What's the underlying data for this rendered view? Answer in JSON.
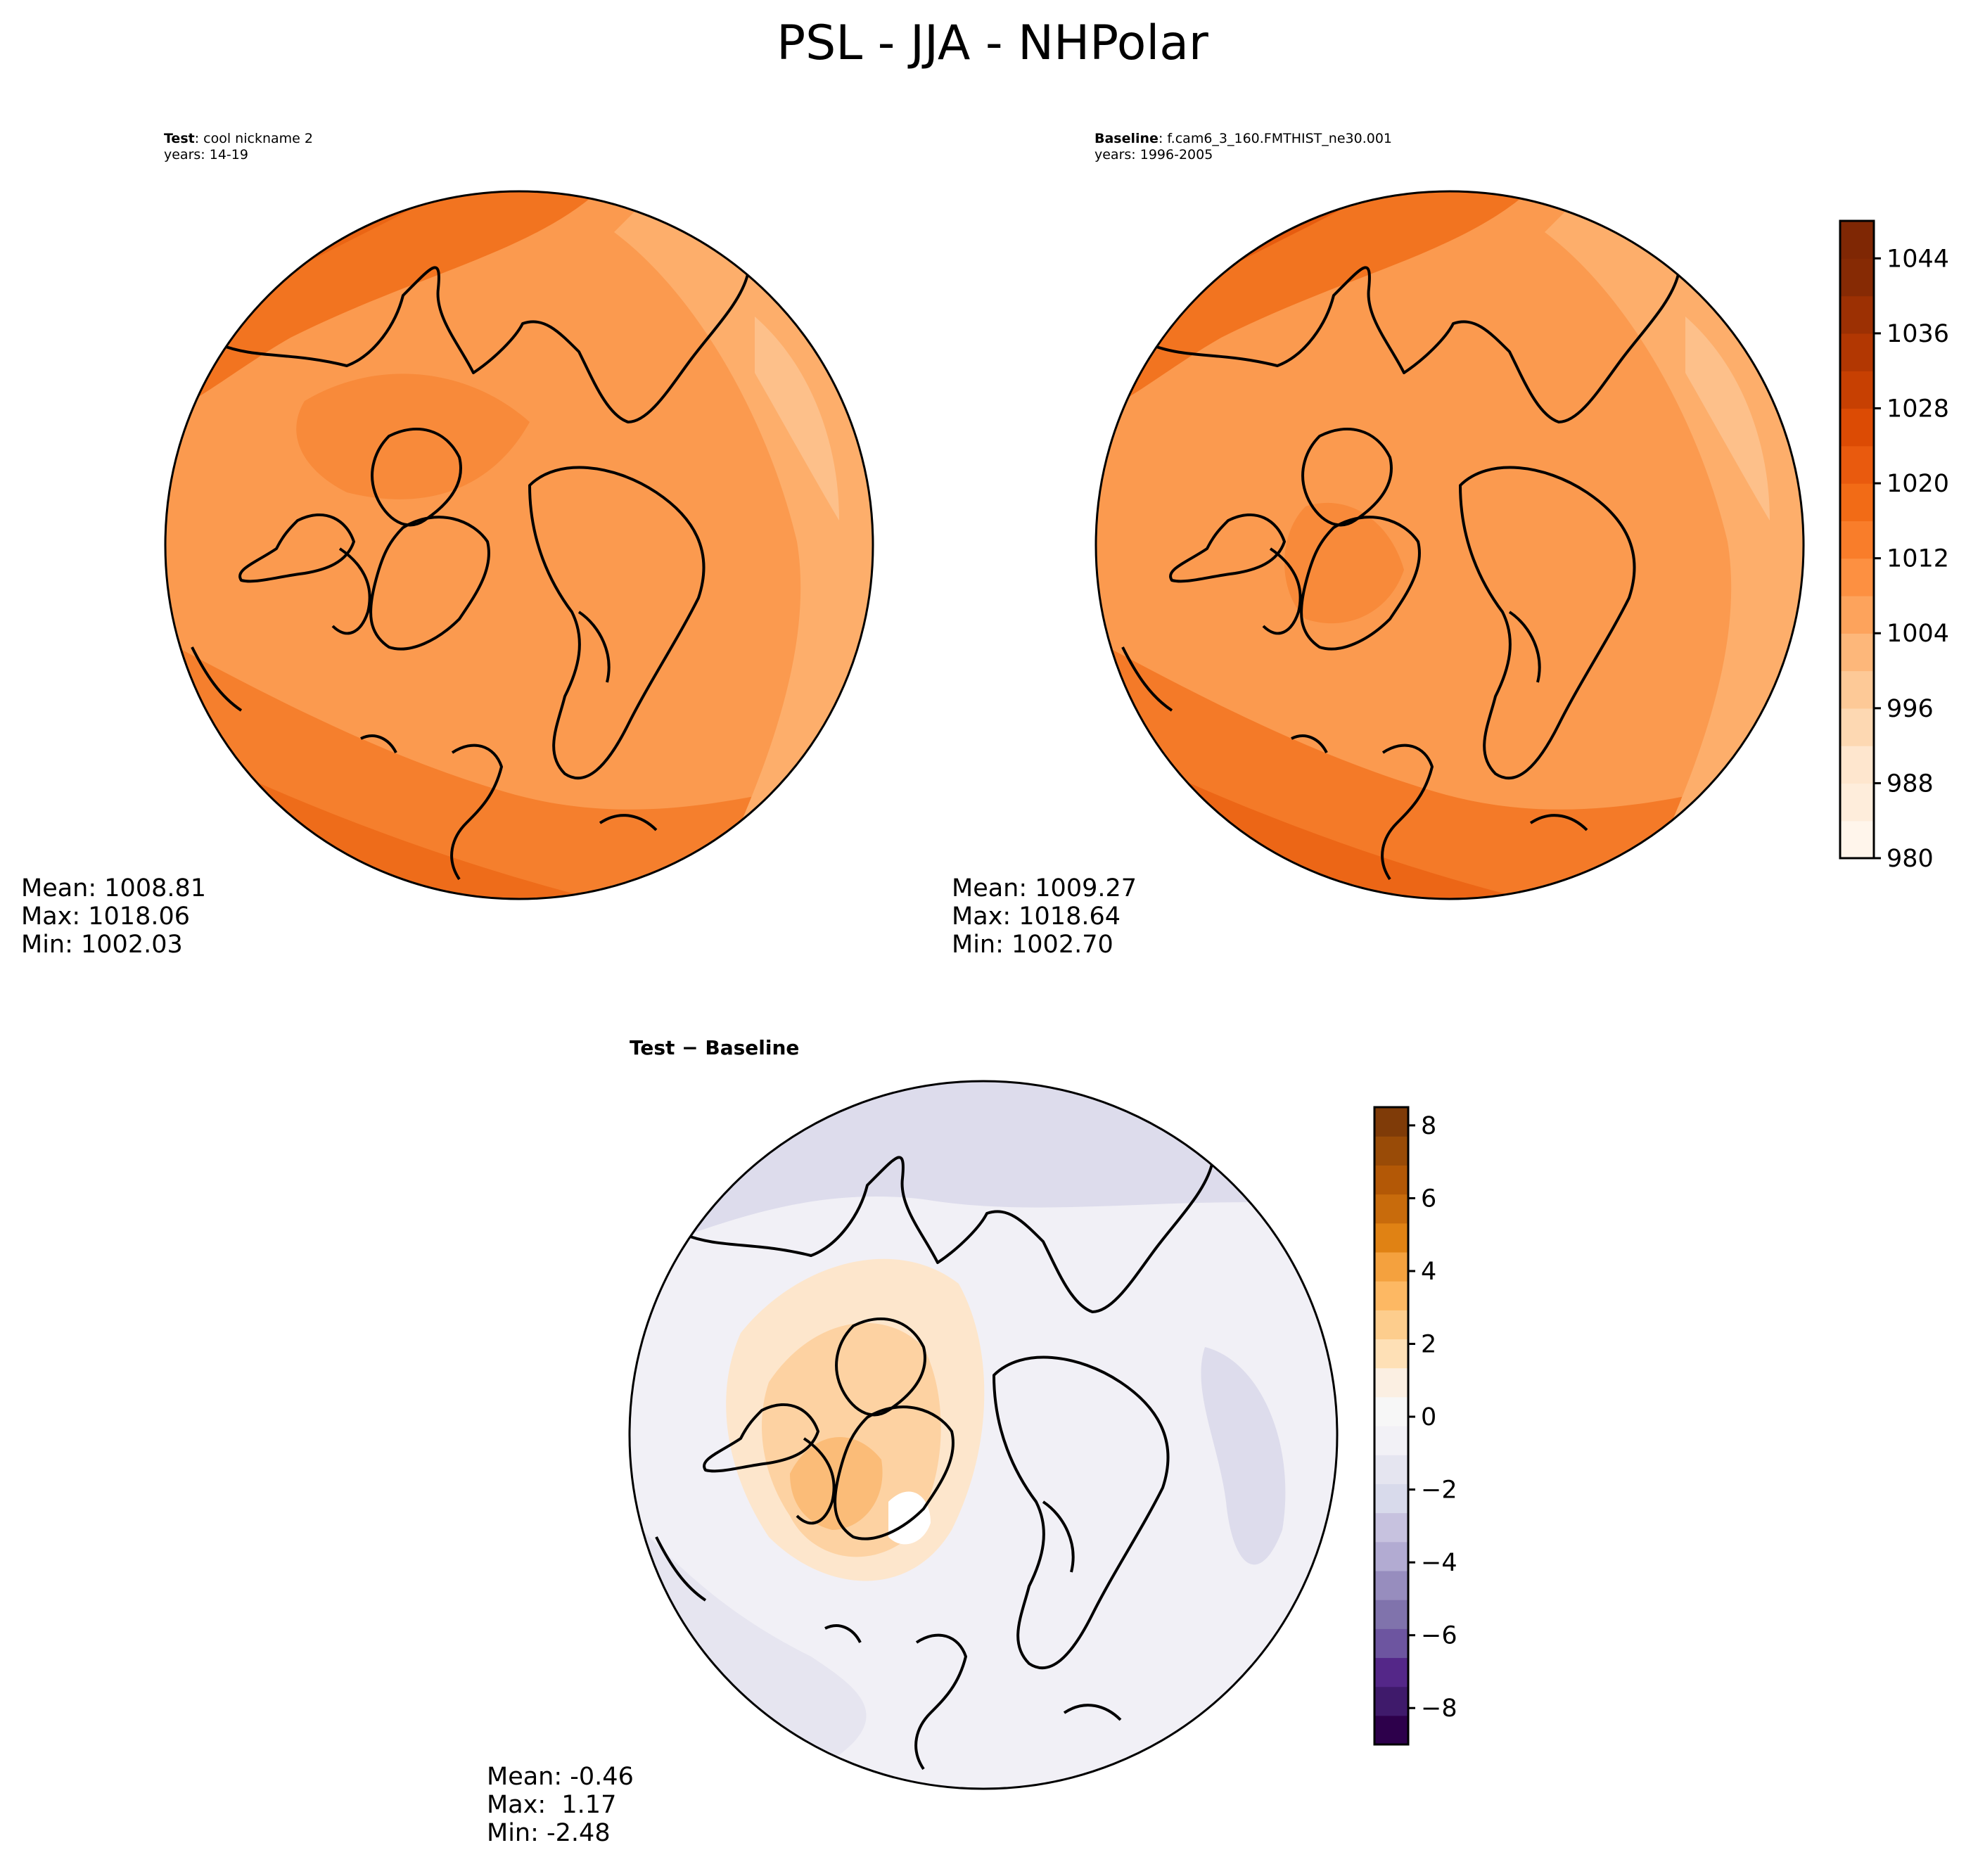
{
  "figure": {
    "title": "PSL - JJA - NHPolar"
  },
  "panels": {
    "test": {
      "label_bold": "Test",
      "label_rest": ": cool nickname 2",
      "years": "years: 14-19",
      "stats": {
        "mean": "Mean: 1008.81",
        "max": "Max: 1018.06",
        "min": "Min: 1002.03"
      }
    },
    "baseline": {
      "label_bold": "Baseline",
      "label_rest": ": f.cam6_3_160.FMTHIST_ne30.001",
      "years": "years: 1996-2005",
      "stats": {
        "mean": "Mean: 1009.27",
        "max": "Max: 1018.64",
        "min": "Min: 1002.70"
      }
    },
    "difference": {
      "title_left": "Test",
      "title_op": " − ",
      "title_right": "Baseline",
      "stats": {
        "mean": "Mean: -0.46",
        "max": "Max:  1.17",
        "min": "Min: -2.48"
      }
    }
  },
  "colorbars": {
    "absolute": {
      "colormap": "Oranges",
      "range": [
        980,
        1048
      ],
      "levels": 17,
      "ticks": [
        "980",
        "988",
        "996",
        "1004",
        "1012",
        "1020",
        "1028",
        "1036",
        "1044"
      ],
      "tick_values": [
        980,
        988,
        996,
        1004,
        1012,
        1020,
        1028,
        1036,
        1044
      ],
      "colors": [
        "#fff5eb",
        "#feeddb",
        "#fee6ce",
        "#fdd8b2",
        "#fdc997",
        "#fdb77a",
        "#fda35c",
        "#fd9041",
        "#f97d2a",
        "#f26b16",
        "#e95a0e",
        "#dc4b04",
        "#c74002",
        "#b23702",
        "#9c3003",
        "#862a04",
        "#7f2704"
      ]
    },
    "difference": {
      "colormap": "PuOr_r",
      "range": [
        -9,
        8.5
      ],
      "ticks": [
        "−8",
        "−6",
        "−4",
        "−2",
        "0",
        "2",
        "4",
        "6",
        "8"
      ],
      "tick_values": [
        -8,
        -6,
        -4,
        -2,
        0,
        2,
        4,
        6,
        8
      ],
      "colors": [
        "#2d004b",
        "#3f1a6b",
        "#542788",
        "#6d55a0",
        "#8073ac",
        "#978dbe",
        "#b2abd2",
        "#c7c2df",
        "#d8daeb",
        "#e5e5f0",
        "#f2f1f6",
        "#f7f7f7",
        "#fbefe2",
        "#fee0b6",
        "#fdcd8d",
        "#fdb863",
        "#f4a13e",
        "#e08214",
        "#c86b0c",
        "#b35806",
        "#994b07",
        "#7f3b08"
      ]
    }
  },
  "map_colors": {
    "test_base": "#fb9a4f",
    "baseline_base": "#fb9a4f",
    "difference_base": "#f1f0f6",
    "coast": "#000000"
  }
}
